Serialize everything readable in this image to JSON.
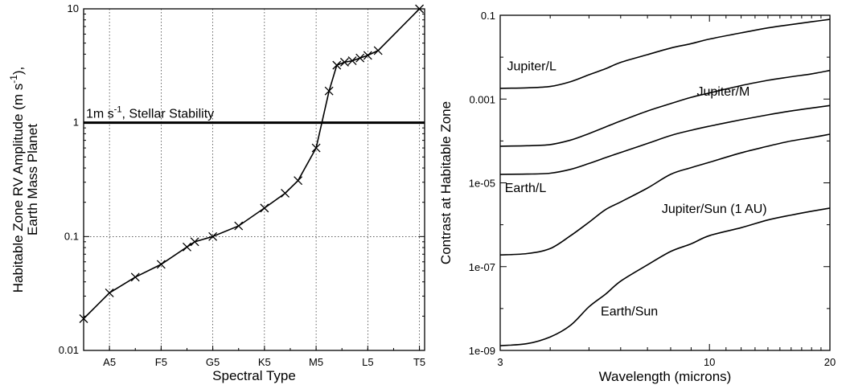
{
  "chart_data": [
    {
      "type": "line",
      "xlabel": "Spectral Type",
      "ylabel_line1": "Habitable Zone RV Amplitude (m s",
      "ylabel_sup": "-1",
      "ylabel_after": "),",
      "ylabel_line2": "Earth Mass Planet",
      "yscale": "log",
      "ylim": [
        0.01,
        10
      ],
      "xlim": [
        0,
        13.2
      ],
      "y_ticks": [
        {
          "value": 0.01,
          "label": "0.01"
        },
        {
          "value": 0.1,
          "label": "0.1"
        },
        {
          "value": 1,
          "label": "1"
        },
        {
          "value": 10,
          "label": "10"
        }
      ],
      "x_ticks": [
        {
          "value": 1,
          "label": "A5"
        },
        {
          "value": 3,
          "label": "F5"
        },
        {
          "value": 5,
          "label": "G5"
        },
        {
          "value": 7,
          "label": "K5"
        },
        {
          "value": 9,
          "label": "M5"
        },
        {
          "value": 11,
          "label": "L5"
        },
        {
          "value": 13,
          "label": "T5"
        }
      ],
      "grid": true,
      "reference_line": {
        "value": 1,
        "label_part1": "1m s",
        "label_sup": "-1",
        "label_part2": ", Stellar Stability"
      },
      "series": [
        {
          "marker": "x",
          "x": [
            0.0,
            1.0,
            2.0,
            3.0,
            4.0,
            4.3,
            5.0,
            6.0,
            7.0,
            7.8,
            8.3,
            9.0,
            9.5,
            9.8,
            10.1,
            10.4,
            10.7,
            11.0,
            11.4,
            13.0
          ],
          "y": [
            0.019,
            0.032,
            0.044,
            0.057,
            0.081,
            0.09,
            0.1,
            0.124,
            0.178,
            0.24,
            0.31,
            0.6,
            1.9,
            3.2,
            3.4,
            3.5,
            3.7,
            3.9,
            4.3,
            10.0
          ]
        }
      ]
    },
    {
      "type": "line",
      "xlabel": "Wavelength (microns)",
      "ylabel": "Contrast at Habitable Zone",
      "xscale": "log",
      "yscale": "log",
      "xlim": [
        3,
        20
      ],
      "ylim": [
        1e-09,
        0.1
      ],
      "x_ticks": [
        {
          "value": 3,
          "label": "3"
        },
        {
          "value": 10,
          "label": "10"
        },
        {
          "value": 20,
          "label": "20"
        }
      ],
      "y_ticks": [
        {
          "value": 1e-09,
          "label": "1e-09"
        },
        {
          "value": 1e-07,
          "label": "1e-07"
        },
        {
          "value": 1e-05,
          "label": "1e-05"
        },
        {
          "value": 0.001,
          "label": "0.001"
        },
        {
          "value": 0.1,
          "label": "0.1"
        }
      ],
      "grid": false,
      "x": [
        3,
        3.5,
        4,
        4.5,
        5,
        5.5,
        6,
        7,
        8,
        9,
        10,
        12,
        14,
        16,
        18,
        20
      ],
      "series": [
        {
          "y": [
            0.0018,
            0.00185,
            0.002,
            0.0026,
            0.0038,
            0.0053,
            0.0075,
            0.0115,
            0.0165,
            0.021,
            0.027,
            0.038,
            0.05,
            0.06,
            0.07,
            0.08
          ]
        },
        {
          "y": [
            7.5e-05,
            7.7e-05,
            8.2e-05,
            0.000105,
            0.00015,
            0.000215,
            0.0003,
            0.00052,
            0.00078,
            0.0011,
            0.0014,
            0.0021,
            0.0028,
            0.0034,
            0.004,
            0.0048
          ]
        },
        {
          "y": [
            1.6e-05,
            1.62e-05,
            1.7e-05,
            2.1e-05,
            2.9e-05,
            4e-05,
            5.3e-05,
            8.7e-05,
            0.000135,
            0.00018,
            0.000225,
            0.00032,
            0.00042,
            0.00052,
            0.00061,
            0.0007
          ]
        },
        {
          "y": [
            1.9e-07,
            2.05e-07,
            2.7e-07,
            5.5e-07,
            1.15e-06,
            2.3e-06,
            3.5e-06,
            7.5e-06,
            1.6e-05,
            2.3e-05,
            3.1e-05,
            5.2e-05,
            7.5e-05,
            0.0001,
            0.00012,
            0.000145
          ]
        },
        {
          "y": [
            1.3e-09,
            1.45e-09,
            2.1e-09,
            4e-09,
            1.1e-08,
            2.2e-08,
            4.5e-08,
            1.1e-07,
            2.3e-07,
            3.5e-07,
            5.5e-07,
            8.5e-07,
            1.3e-06,
            1.7e-06,
            2.1e-06,
            2.5e-06
          ]
        }
      ],
      "annotations": [
        {
          "text": "Jupiter/L",
          "x": 3.12,
          "y": 0.0048
        },
        {
          "text": "Jupiter/M",
          "x": 9.3,
          "y": 0.0012
        },
        {
          "text": "Earth/L",
          "x": 3.08,
          "y": 6e-06
        },
        {
          "text": "Jupiter/Sun (1 AU)",
          "x": 7.6,
          "y": 1.9e-06
        },
        {
          "text": "Earth/Sun",
          "x": 5.35,
          "y": 6.8e-09
        }
      ]
    }
  ]
}
